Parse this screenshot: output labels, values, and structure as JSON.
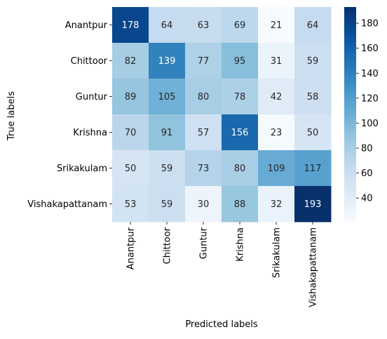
{
  "chart_data": {
    "type": "heatmap",
    "title": "",
    "xlabel": "Predicted labels",
    "ylabel": "True labels",
    "x_categories": [
      "Anantpur",
      "Chittoor",
      "Guntur",
      "Krishna",
      "Srikakulam",
      "Vishakapattanam"
    ],
    "y_categories": [
      "Anantpur",
      "Chittoor",
      "Guntur",
      "Krishna",
      "Srikakulam",
      "Vishakapattanam"
    ],
    "values": [
      [
        178,
        64,
        63,
        69,
        21,
        64
      ],
      [
        82,
        139,
        77,
        95,
        31,
        59
      ],
      [
        89,
        105,
        80,
        78,
        42,
        58
      ],
      [
        70,
        91,
        57,
        156,
        23,
        50
      ],
      [
        50,
        59,
        73,
        80,
        109,
        117
      ],
      [
        53,
        59,
        30,
        88,
        32,
        193
      ]
    ],
    "colormap": "Blues",
    "vmin": 21,
    "vmax": 193,
    "colorbar": {
      "ticks": [
        40,
        60,
        80,
        100,
        120,
        140,
        160,
        180
      ]
    },
    "annotate": true
  }
}
